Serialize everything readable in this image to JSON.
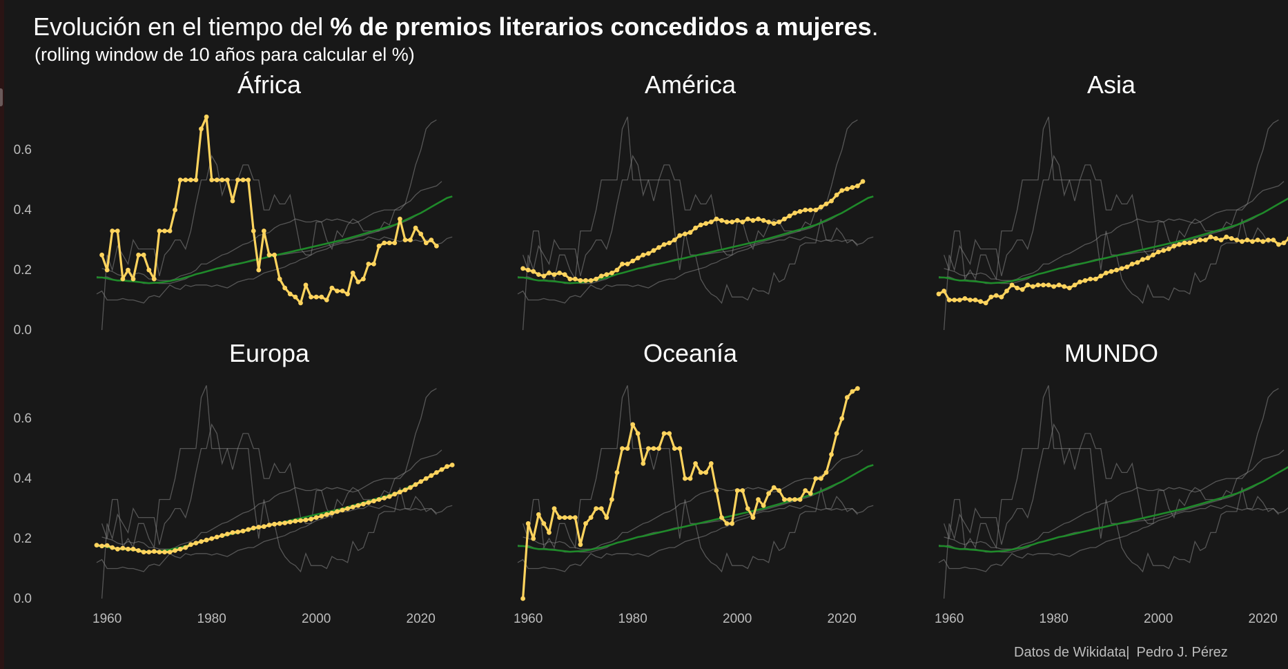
{
  "header": {
    "title_prefix": "Evolución en el tiempo del ",
    "title_bold": "% de premios literarios concedidos a mujeres",
    "title_suffix": ".",
    "subtitle": "(rolling window de 10 años para calcular el %)"
  },
  "caption": {
    "source": "Datos de Wikidata",
    "separator": "|",
    "author": "Pedro J. Pérez"
  },
  "colors": {
    "background": "#181818",
    "highlight": "#ffd45e",
    "trend": "#1f8a2a",
    "context": "#8a8a8a",
    "text": "#ffffff",
    "tick": "#bdbdbd"
  },
  "chart_data": {
    "type": "line",
    "facets": [
      "África",
      "América",
      "Asia",
      "Europa",
      "Oceanía",
      "MUNDO"
    ],
    "x_ticks": [
      1960,
      1980,
      2000,
      2020
    ],
    "y_ticks": [
      "0.0",
      "0.2",
      "0.4",
      "0.6"
    ],
    "xlim": [
      1958,
      2024
    ],
    "ylim": [
      0,
      0.72
    ],
    "grid": false,
    "series": [
      {
        "name": "África",
        "x_start": 1959,
        "values": [
          0.25,
          0.2,
          0.33,
          0.33,
          0.17,
          0.2,
          0.17,
          0.25,
          0.25,
          0.2,
          0.17,
          0.33,
          0.33,
          0.33,
          0.4,
          0.5,
          0.5,
          0.5,
          0.5,
          0.67,
          0.71,
          0.5,
          0.5,
          0.5,
          0.5,
          0.43,
          0.5,
          0.5,
          0.5,
          0.33,
          0.2,
          0.33,
          0.25,
          0.25,
          0.17,
          0.14,
          0.12,
          0.11,
          0.09,
          0.15,
          0.11,
          0.11,
          0.11,
          0.1,
          0.14,
          0.13,
          0.13,
          0.12,
          0.19,
          0.16,
          0.17,
          0.22,
          0.22,
          0.28,
          0.29,
          0.29,
          0.29,
          0.37,
          0.3,
          0.3,
          0.34,
          0.32,
          0.29,
          0.3,
          0.28
        ]
      },
      {
        "name": "América",
        "x_start": 1959,
        "values": [
          0.205,
          0.2,
          0.195,
          0.185,
          0.18,
          0.19,
          0.185,
          0.19,
          0.185,
          0.17,
          0.17,
          0.165,
          0.165,
          0.165,
          0.17,
          0.18,
          0.185,
          0.19,
          0.2,
          0.22,
          0.22,
          0.23,
          0.24,
          0.25,
          0.255,
          0.265,
          0.275,
          0.285,
          0.29,
          0.3,
          0.315,
          0.32,
          0.325,
          0.34,
          0.35,
          0.355,
          0.36,
          0.37,
          0.365,
          0.36,
          0.36,
          0.365,
          0.36,
          0.37,
          0.365,
          0.37,
          0.365,
          0.36,
          0.355,
          0.36,
          0.37,
          0.38,
          0.39,
          0.395,
          0.4,
          0.4,
          0.4,
          0.41,
          0.42,
          0.43,
          0.45,
          0.465,
          0.47,
          0.475,
          0.48,
          0.495
        ]
      },
      {
        "name": "Asia",
        "x_start": 1958,
        "values": [
          0.12,
          0.13,
          0.1,
          0.1,
          0.1,
          0.105,
          0.1,
          0.1,
          0.095,
          0.09,
          0.11,
          0.115,
          0.11,
          0.13,
          0.15,
          0.14,
          0.135,
          0.15,
          0.145,
          0.15,
          0.15,
          0.15,
          0.145,
          0.15,
          0.145,
          0.14,
          0.15,
          0.16,
          0.165,
          0.17,
          0.17,
          0.18,
          0.19,
          0.195,
          0.2,
          0.205,
          0.21,
          0.22,
          0.225,
          0.235,
          0.24,
          0.25,
          0.26,
          0.265,
          0.27,
          0.28,
          0.285,
          0.29,
          0.29,
          0.295,
          0.3,
          0.3,
          0.31,
          0.305,
          0.3,
          0.31,
          0.305,
          0.3,
          0.295,
          0.3,
          0.295,
          0.3,
          0.295,
          0.3,
          0.3,
          0.285,
          0.29,
          0.305,
          0.31
        ]
      },
      {
        "name": "Europa",
        "x_start": 1958,
        "values": [
          0.178,
          0.175,
          0.177,
          0.17,
          0.165,
          0.168,
          0.165,
          0.165,
          0.16,
          0.155,
          0.155,
          0.157,
          0.155,
          0.155,
          0.155,
          0.16,
          0.165,
          0.17,
          0.18,
          0.185,
          0.19,
          0.195,
          0.2,
          0.205,
          0.21,
          0.215,
          0.22,
          0.222,
          0.225,
          0.23,
          0.235,
          0.238,
          0.24,
          0.245,
          0.248,
          0.25,
          0.252,
          0.255,
          0.258,
          0.26,
          0.262,
          0.265,
          0.27,
          0.275,
          0.28,
          0.285,
          0.29,
          0.295,
          0.3,
          0.305,
          0.31,
          0.315,
          0.32,
          0.325,
          0.33,
          0.335,
          0.34,
          0.348,
          0.355,
          0.362,
          0.37,
          0.38,
          0.39,
          0.4,
          0.41,
          0.42,
          0.43,
          0.44,
          0.445
        ]
      },
      {
        "name": "Oceanía",
        "x_start": 1959,
        "values": [
          0.0,
          0.25,
          0.2,
          0.28,
          0.25,
          0.22,
          0.3,
          0.27,
          0.27,
          0.27,
          0.27,
          0.18,
          0.25,
          0.27,
          0.3,
          0.3,
          0.27,
          0.33,
          0.42,
          0.5,
          0.5,
          0.58,
          0.55,
          0.45,
          0.5,
          0.5,
          0.5,
          0.55,
          0.55,
          0.5,
          0.5,
          0.4,
          0.4,
          0.45,
          0.42,
          0.42,
          0.45,
          0.36,
          0.27,
          0.25,
          0.25,
          0.36,
          0.36,
          0.3,
          0.27,
          0.33,
          0.31,
          0.35,
          0.37,
          0.36,
          0.33,
          0.33,
          0.33,
          0.33,
          0.36,
          0.35,
          0.4,
          0.4,
          0.42,
          0.48,
          0.55,
          0.6,
          0.67,
          0.69,
          0.7
        ]
      },
      {
        "name": "MUNDO",
        "x_start": 1958,
        "values": [
          0.175,
          0.175,
          0.172,
          0.168,
          0.165,
          0.165,
          0.163,
          0.162,
          0.16,
          0.158,
          0.156,
          0.157,
          0.158,
          0.16,
          0.163,
          0.167,
          0.17,
          0.175,
          0.18,
          0.186,
          0.19,
          0.195,
          0.2,
          0.205,
          0.208,
          0.212,
          0.216,
          0.22,
          0.224,
          0.228,
          0.232,
          0.236,
          0.24,
          0.244,
          0.248,
          0.252,
          0.256,
          0.26,
          0.264,
          0.268,
          0.272,
          0.276,
          0.28,
          0.284,
          0.288,
          0.292,
          0.296,
          0.3,
          0.305,
          0.31,
          0.315,
          0.32,
          0.325,
          0.33,
          0.335,
          0.34,
          0.345,
          0.35,
          0.358,
          0.366,
          0.374,
          0.382,
          0.39,
          0.4,
          0.41,
          0.42,
          0.43,
          0.44,
          0.445
        ]
      }
    ]
  }
}
